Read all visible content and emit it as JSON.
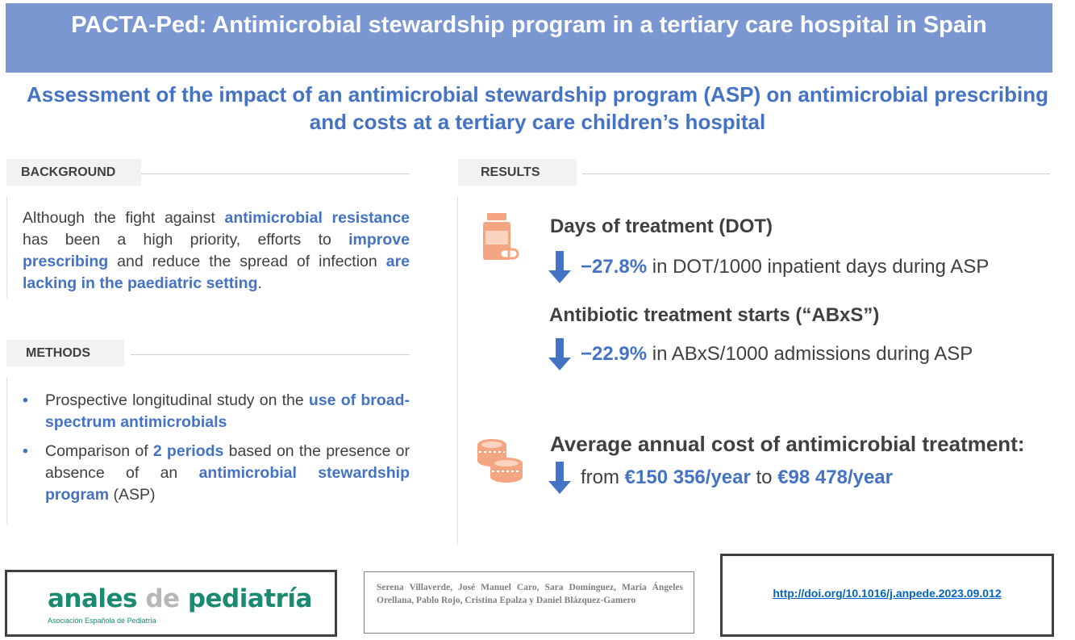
{
  "header": {
    "title": "PACTA-Ped: Antimicrobial stewardship program in a tertiary care hospital in Spain",
    "subtitle": "Assessment of the impact of an antimicrobial stewardship program (ASP) on antimicrobial prescribing and costs at a tertiary care children’s hospital"
  },
  "background": {
    "label": "BACKGROUND",
    "segments": [
      "Although the fight against ",
      "antimicrobial resistance",
      " has been a high priority, efforts to ",
      "improve prescribing",
      " and reduce the spread of infection ",
      "are lacking in the paediatric setting",
      "."
    ]
  },
  "methods": {
    "label": "METHODS",
    "bullet_char": "•",
    "bullets": [
      {
        "segments": [
          "Prospective longitudinal study on the ",
          "use of broad-spectrum antimicrobials"
        ]
      },
      {
        "segments": [
          "Comparison of ",
          "2 periods",
          " based on the presence or absence of an ",
          "antimicrobial stewardship program",
          " (ASP)"
        ]
      }
    ]
  },
  "results": {
    "label": "RESULTS",
    "dot_heading": "Days of treatment (DOT)",
    "dot_value": "−27.8%",
    "dot_text": " in DOT/1000 inpatient days during ASP",
    "abxs_heading": "Antibiotic treatment starts (“ABxS”)",
    "abxs_value": "−22.9%",
    "abxs_text": " in ABxS/1000 admissions during ASP",
    "cost_heading": "Average annual cost of antimicrobial treatment:",
    "cost_from": "from ",
    "cost_from_value": "€150 356/year",
    "cost_to": " to ",
    "cost_to_value": "€98 478/year"
  },
  "footer": {
    "journal_name_1": "anales ",
    "journal_name_2": "de",
    "journal_name_3": " pediatría",
    "journal_society": "Asociación Española de Pediatría",
    "authors": "Serena Villaverde, José Manuel Caro, Sara Domínguez, María Ángeles Orellana, Pablo Rojo, Cristina Epalza y Daniel Blázquez-Gamero",
    "doi": "http://doi.org/10.1016/j.anpede.2023.09.012"
  },
  "icons": {
    "medicine": "medicine-bottle-icon",
    "coins": "coins-icon",
    "arrow": "arrow-down-icon"
  },
  "colors": {
    "banner": "#7b97d2",
    "accent": "#4472c4",
    "icon_orange": "#f4a582",
    "logo_green": "#1b8a70"
  }
}
